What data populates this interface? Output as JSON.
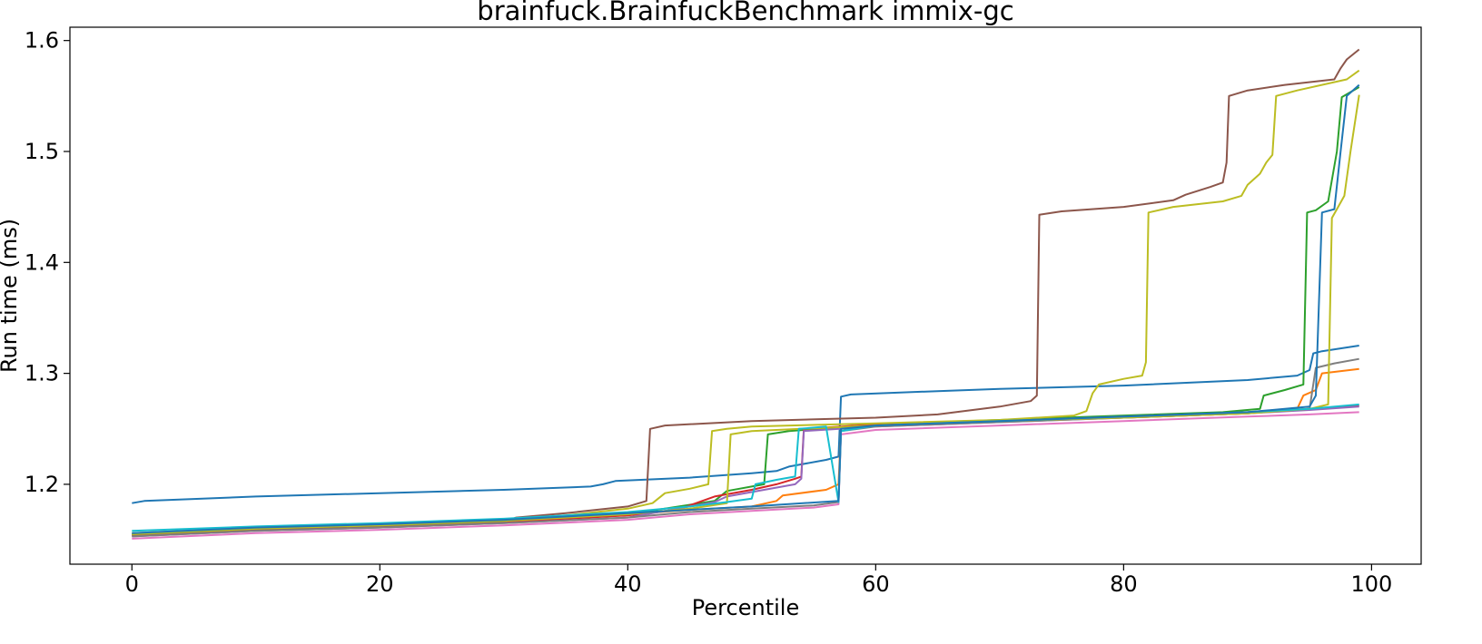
{
  "chart_data": {
    "type": "line",
    "title": "brainfuck.BrainfuckBenchmark immix-gc",
    "xlabel": "Percentile",
    "ylabel": "Run time (ms)",
    "xlim": [
      -5,
      104
    ],
    "ylim": [
      1.128,
      1.612
    ],
    "xticks": [
      0,
      20,
      40,
      60,
      80,
      100
    ],
    "yticks": [
      1.2,
      1.3,
      1.4,
      1.5,
      1.6
    ],
    "grid": false,
    "legend": "none",
    "series": [
      {
        "color": "#1f77b4",
        "points": [
          [
            0,
            1.183
          ],
          [
            1,
            1.185
          ],
          [
            10,
            1.189
          ],
          [
            20,
            1.192
          ],
          [
            30,
            1.195
          ],
          [
            37,
            1.198
          ],
          [
            38,
            1.2
          ],
          [
            39,
            1.203
          ],
          [
            45,
            1.206
          ],
          [
            50,
            1.21
          ],
          [
            52,
            1.212
          ],
          [
            53,
            1.216
          ],
          [
            56,
            1.222
          ],
          [
            57,
            1.225
          ],
          [
            57.2,
            1.279
          ],
          [
            58,
            1.281
          ],
          [
            65,
            1.284
          ],
          [
            70,
            1.286
          ],
          [
            80,
            1.289
          ],
          [
            90,
            1.294
          ],
          [
            94,
            1.298
          ],
          [
            95,
            1.303
          ],
          [
            95.3,
            1.318
          ],
          [
            96,
            1.32
          ],
          [
            99,
            1.325
          ]
        ]
      },
      {
        "color": "#ff7f0e",
        "points": [
          [
            0,
            1.155
          ],
          [
            10,
            1.16
          ],
          [
            20,
            1.163
          ],
          [
            30,
            1.167
          ],
          [
            40,
            1.173
          ],
          [
            45,
            1.177
          ],
          [
            50,
            1.18
          ],
          [
            52,
            1.185
          ],
          [
            52.5,
            1.19
          ],
          [
            56,
            1.195
          ],
          [
            57,
            1.2
          ],
          [
            57.2,
            1.25
          ],
          [
            60,
            1.253
          ],
          [
            70,
            1.257
          ],
          [
            80,
            1.26
          ],
          [
            90,
            1.264
          ],
          [
            94,
            1.268
          ],
          [
            94.5,
            1.28
          ],
          [
            95.5,
            1.285
          ],
          [
            96,
            1.3
          ],
          [
            99,
            1.304
          ]
        ]
      },
      {
        "color": "#2ca02c",
        "points": [
          [
            0,
            1.155
          ],
          [
            10,
            1.16
          ],
          [
            20,
            1.163
          ],
          [
            30,
            1.167
          ],
          [
            40,
            1.173
          ],
          [
            47,
            1.185
          ],
          [
            48,
            1.194
          ],
          [
            51,
            1.2
          ],
          [
            51.3,
            1.245
          ],
          [
            53,
            1.248
          ],
          [
            60,
            1.254
          ],
          [
            70,
            1.258
          ],
          [
            80,
            1.262
          ],
          [
            88,
            1.265
          ],
          [
            91,
            1.268
          ],
          [
            91.3,
            1.28
          ],
          [
            93,
            1.285
          ],
          [
            94.5,
            1.29
          ],
          [
            94.8,
            1.445
          ],
          [
            95.5,
            1.447
          ],
          [
            96.5,
            1.455
          ],
          [
            97.2,
            1.5
          ],
          [
            97.6,
            1.549
          ],
          [
            99,
            1.558
          ]
        ]
      },
      {
        "color": "#d62728",
        "points": [
          [
            0,
            1.154
          ],
          [
            10,
            1.159
          ],
          [
            20,
            1.162
          ],
          [
            30,
            1.166
          ],
          [
            40,
            1.172
          ],
          [
            44,
            1.177
          ],
          [
            47,
            1.189
          ],
          [
            50,
            1.195
          ],
          [
            52,
            1.2
          ],
          [
            53.5,
            1.205
          ],
          [
            54,
            1.207
          ],
          [
            54.2,
            1.25
          ],
          [
            60,
            1.254
          ],
          [
            70,
            1.257
          ],
          [
            80,
            1.261
          ],
          [
            90,
            1.265
          ],
          [
            95,
            1.268
          ],
          [
            99,
            1.271
          ]
        ]
      },
      {
        "color": "#9467bd",
        "points": [
          [
            0,
            1.153
          ],
          [
            10,
            1.158
          ],
          [
            20,
            1.161
          ],
          [
            30,
            1.165
          ],
          [
            40,
            1.17
          ],
          [
            47,
            1.184
          ],
          [
            48,
            1.189
          ],
          [
            53.5,
            1.2
          ],
          [
            54,
            1.205
          ],
          [
            54.2,
            1.248
          ],
          [
            60,
            1.252
          ],
          [
            70,
            1.256
          ],
          [
            80,
            1.26
          ],
          [
            90,
            1.264
          ],
          [
            95,
            1.267
          ],
          [
            99,
            1.27
          ]
        ]
      },
      {
        "color": "#8c564b",
        "points": [
          [
            0,
            1.154
          ],
          [
            10,
            1.159
          ],
          [
            20,
            1.162
          ],
          [
            30,
            1.166
          ],
          [
            31,
            1.17
          ],
          [
            35,
            1.174
          ],
          [
            40,
            1.18
          ],
          [
            41.5,
            1.185
          ],
          [
            41.8,
            1.25
          ],
          [
            43,
            1.253
          ],
          [
            50,
            1.257
          ],
          [
            60,
            1.26
          ],
          [
            65,
            1.263
          ],
          [
            70,
            1.27
          ],
          [
            72.5,
            1.275
          ],
          [
            73,
            1.28
          ],
          [
            73.2,
            1.443
          ],
          [
            75,
            1.446
          ],
          [
            80,
            1.45
          ],
          [
            84,
            1.456
          ],
          [
            85,
            1.461
          ],
          [
            87,
            1.468
          ],
          [
            88,
            1.472
          ],
          [
            88.3,
            1.49
          ],
          [
            88.5,
            1.55
          ],
          [
            90,
            1.555
          ],
          [
            93,
            1.56
          ],
          [
            97,
            1.565
          ],
          [
            97.5,
            1.575
          ],
          [
            98,
            1.583
          ],
          [
            99,
            1.592
          ]
        ]
      },
      {
        "color": "#e377c2",
        "points": [
          [
            0,
            1.151
          ],
          [
            10,
            1.156
          ],
          [
            20,
            1.159
          ],
          [
            30,
            1.163
          ],
          [
            40,
            1.168
          ],
          [
            45,
            1.173
          ],
          [
            50,
            1.176
          ],
          [
            55,
            1.179
          ],
          [
            57,
            1.182
          ],
          [
            57.2,
            1.245
          ],
          [
            60,
            1.249
          ],
          [
            70,
            1.253
          ],
          [
            80,
            1.257
          ],
          [
            90,
            1.261
          ],
          [
            95,
            1.263
          ],
          [
            99,
            1.265
          ]
        ]
      },
      {
        "color": "#7f7f7f",
        "points": [
          [
            0,
            1.153
          ],
          [
            10,
            1.158
          ],
          [
            20,
            1.161
          ],
          [
            30,
            1.165
          ],
          [
            40,
            1.17
          ],
          [
            45,
            1.175
          ],
          [
            50,
            1.178
          ],
          [
            55,
            1.181
          ],
          [
            57,
            1.184
          ],
          [
            57.2,
            1.248
          ],
          [
            60,
            1.252
          ],
          [
            70,
            1.256
          ],
          [
            80,
            1.26
          ],
          [
            90,
            1.264
          ],
          [
            95,
            1.268
          ],
          [
            95.5,
            1.305
          ],
          [
            97,
            1.309
          ],
          [
            99,
            1.313
          ]
        ]
      },
      {
        "color": "#bcbd22",
        "points": [
          [
            0,
            1.156
          ],
          [
            10,
            1.161
          ],
          [
            20,
            1.164
          ],
          [
            30,
            1.168
          ],
          [
            35,
            1.172
          ],
          [
            40,
            1.178
          ],
          [
            42,
            1.183
          ],
          [
            43,
            1.192
          ],
          [
            45,
            1.196
          ],
          [
            46.5,
            1.2
          ],
          [
            46.8,
            1.248
          ],
          [
            48,
            1.25
          ],
          [
            50,
            1.252
          ],
          [
            60,
            1.255
          ],
          [
            70,
            1.258
          ],
          [
            76,
            1.262
          ],
          [
            77,
            1.266
          ],
          [
            77.5,
            1.282
          ],
          [
            78,
            1.29
          ],
          [
            80,
            1.295
          ],
          [
            81.5,
            1.298
          ],
          [
            81.8,
            1.31
          ],
          [
            82,
            1.445
          ],
          [
            84,
            1.45
          ],
          [
            88,
            1.455
          ],
          [
            89.5,
            1.46
          ],
          [
            90,
            1.47
          ],
          [
            91,
            1.48
          ],
          [
            91.5,
            1.49
          ],
          [
            92,
            1.497
          ],
          [
            92.3,
            1.55
          ],
          [
            94,
            1.555
          ],
          [
            98,
            1.565
          ],
          [
            99,
            1.573
          ]
        ]
      },
      {
        "color": "#bcbd22",
        "points": [
          [
            0,
            1.155
          ],
          [
            10,
            1.16
          ],
          [
            20,
            1.163
          ],
          [
            30,
            1.167
          ],
          [
            40,
            1.173
          ],
          [
            45,
            1.178
          ],
          [
            48,
            1.183
          ],
          [
            48.3,
            1.245
          ],
          [
            50,
            1.248
          ],
          [
            60,
            1.253
          ],
          [
            70,
            1.257
          ],
          [
            80,
            1.26
          ],
          [
            90,
            1.264
          ],
          [
            95,
            1.268
          ],
          [
            96.5,
            1.272
          ],
          [
            96.8,
            1.44
          ],
          [
            97.2,
            1.448
          ],
          [
            97.8,
            1.46
          ],
          [
            98.3,
            1.5
          ],
          [
            99,
            1.551
          ]
        ]
      },
      {
        "color": "#17becf",
        "points": [
          [
            0,
            1.158
          ],
          [
            10,
            1.162
          ],
          [
            20,
            1.165
          ],
          [
            30,
            1.169
          ],
          [
            40,
            1.175
          ],
          [
            45,
            1.18
          ],
          [
            48,
            1.184
          ],
          [
            50,
            1.187
          ],
          [
            50.3,
            1.2
          ],
          [
            52,
            1.204
          ],
          [
            53.5,
            1.207
          ],
          [
            53.8,
            1.25
          ],
          [
            56,
            1.252
          ],
          [
            57,
            1.184
          ],
          [
            57.2,
            1.248
          ],
          [
            60,
            1.253
          ],
          [
            70,
            1.257
          ],
          [
            80,
            1.261
          ],
          [
            90,
            1.265
          ],
          [
            95,
            1.268
          ],
          [
            99,
            1.272
          ]
        ]
      },
      {
        "color": "#1f77b4",
        "points": [
          [
            0,
            1.156
          ],
          [
            10,
            1.161
          ],
          [
            20,
            1.164
          ],
          [
            30,
            1.168
          ],
          [
            40,
            1.174
          ],
          [
            50,
            1.18
          ],
          [
            57,
            1.185
          ],
          [
            57.2,
            1.25
          ],
          [
            60,
            1.253
          ],
          [
            70,
            1.257
          ],
          [
            80,
            1.261
          ],
          [
            90,
            1.265
          ],
          [
            95,
            1.27
          ],
          [
            95.5,
            1.28
          ],
          [
            96,
            1.445
          ],
          [
            97,
            1.448
          ],
          [
            97.5,
            1.5
          ],
          [
            98,
            1.55
          ],
          [
            99,
            1.56
          ]
        ]
      }
    ]
  }
}
